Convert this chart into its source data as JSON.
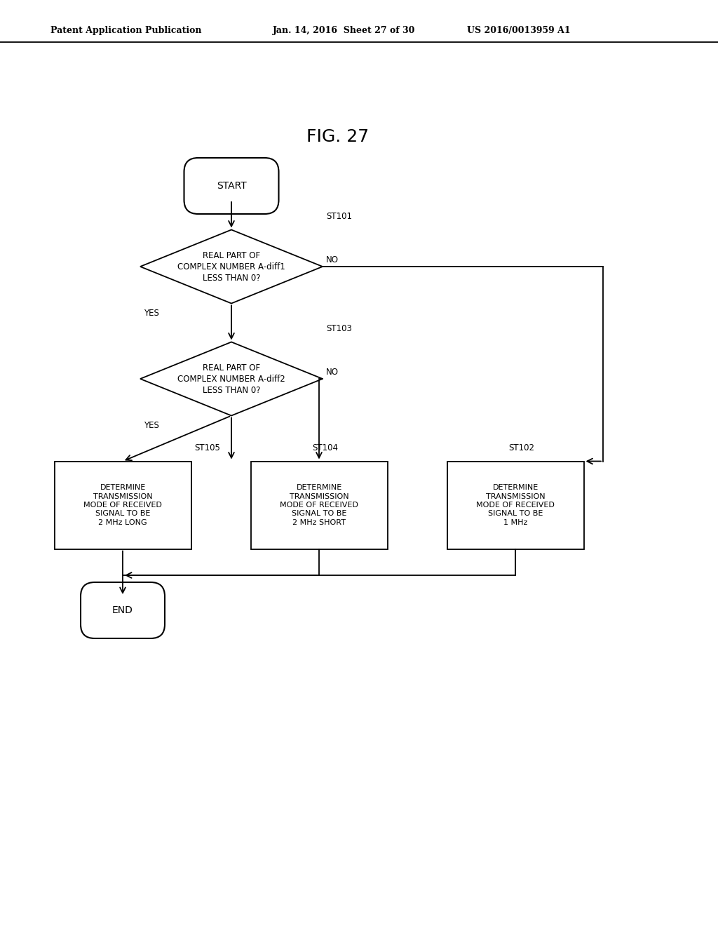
{
  "title": "FIG. 27",
  "header_left": "Patent Application Publication",
  "header_center": "Jan. 14, 2016  Sheet 27 of 30",
  "header_right": "US 2016/0013959 A1",
  "bg_color": "#ffffff",
  "text_color": "#000000",
  "fig_width": 10.24,
  "fig_height": 13.2,
  "dpi": 100,
  "start_label": "START",
  "end_label": "END",
  "d1_label": "REAL PART OF\nCOMPLEX NUMBER A-diff1\nLESS THAN 0?",
  "d1_step": "ST101",
  "d2_label": "REAL PART OF\nCOMPLEX NUMBER A-diff2\nLESS THAN 0?",
  "d2_step": "ST103",
  "b1_label": "DETERMINE\nTRANSMISSION\nMODE OF RECEIVED\nSIGNAL TO BE\n2 MHz LONG",
  "b1_step": "ST105",
  "b2_label": "DETERMINE\nTRANSMISSION\nMODE OF RECEIVED\nSIGNAL TO BE\n2 MHz SHORT",
  "b2_step": "ST104",
  "b3_label": "DETERMINE\nTRANSMISSION\nMODE OF RECEIVED\nSIGNAL TO BE\n1 MHz",
  "b3_step": "ST102"
}
